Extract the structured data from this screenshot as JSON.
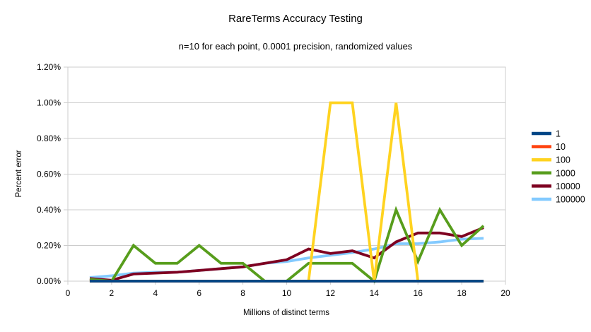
{
  "chart_data": {
    "type": "line",
    "title": "RareTerms Accuracy Testing",
    "subtitle": "n=10 for each point, 0.0001 precision, randomized values",
    "xlabel": "Millions of distinct terms",
    "ylabel": "Percent error",
    "xlim": [
      0,
      20
    ],
    "ylim": [
      0,
      1.2
    ],
    "x_ticks": [
      0,
      2,
      4,
      6,
      8,
      10,
      12,
      14,
      16,
      18,
      20
    ],
    "x_tick_labels": [
      "0",
      "2",
      "4",
      "6",
      "8",
      "10",
      "12",
      "14",
      "16",
      "18",
      "20"
    ],
    "y_ticks": [
      0,
      0.2,
      0.4,
      0.6,
      0.8,
      1.0,
      1.2
    ],
    "y_tick_labels": [
      "0.00%",
      "0.20%",
      "0.40%",
      "0.60%",
      "0.80%",
      "1.00%",
      "1.20%"
    ],
    "grid": true,
    "legend_position": "right",
    "x": [
      1,
      2,
      3,
      4,
      5,
      6,
      7,
      8,
      9,
      10,
      11,
      12,
      13,
      14,
      15,
      16,
      17,
      18,
      19
    ],
    "series": [
      {
        "name": "1",
        "color": "#004586",
        "values": [
          0,
          0,
          0,
          0,
          0,
          0,
          0,
          0,
          0,
          0,
          0,
          0,
          0,
          0,
          0,
          0,
          0,
          0,
          0
        ]
      },
      {
        "name": "10",
        "color": "#ff420e",
        "values": [
          0,
          0,
          0,
          0,
          0,
          0,
          0,
          0,
          0,
          0,
          0,
          0,
          0,
          0,
          0,
          0,
          0,
          0,
          0
        ]
      },
      {
        "name": "100",
        "color": "#ffd320",
        "values": [
          0,
          0,
          0,
          0,
          0,
          0,
          0,
          0,
          0,
          0,
          0,
          1.0,
          1.0,
          0,
          1.0,
          0,
          0,
          0,
          0
        ]
      },
      {
        "name": "1000",
        "color": "#579d1c",
        "values": [
          0.01,
          0,
          0.2,
          0.1,
          0.1,
          0.2,
          0.1,
          0.1,
          0,
          0,
          0.1,
          0.1,
          0.1,
          0,
          0.4,
          0.11,
          0.4,
          0.2,
          0.31
        ]
      },
      {
        "name": "10000",
        "color": "#7e0021",
        "values": [
          0.015,
          0.005,
          0.04,
          0.045,
          0.05,
          0.06,
          0.07,
          0.08,
          0.1,
          0.12,
          0.18,
          0.155,
          0.17,
          0.13,
          0.22,
          0.27,
          0.27,
          0.25,
          0.3
        ]
      },
      {
        "name": "100000",
        "color": "#83caff",
        "values": [
          0.02,
          0.03,
          0.045,
          0.05,
          0.05,
          0.06,
          0.07,
          0.08,
          0.1,
          0.11,
          0.13,
          0.145,
          0.16,
          0.18,
          0.21,
          0.21,
          0.22,
          0.235,
          0.24
        ]
      }
    ]
  },
  "colors": {
    "grid": "#cccccc",
    "text": "#000000",
    "background": "#ffffff"
  }
}
